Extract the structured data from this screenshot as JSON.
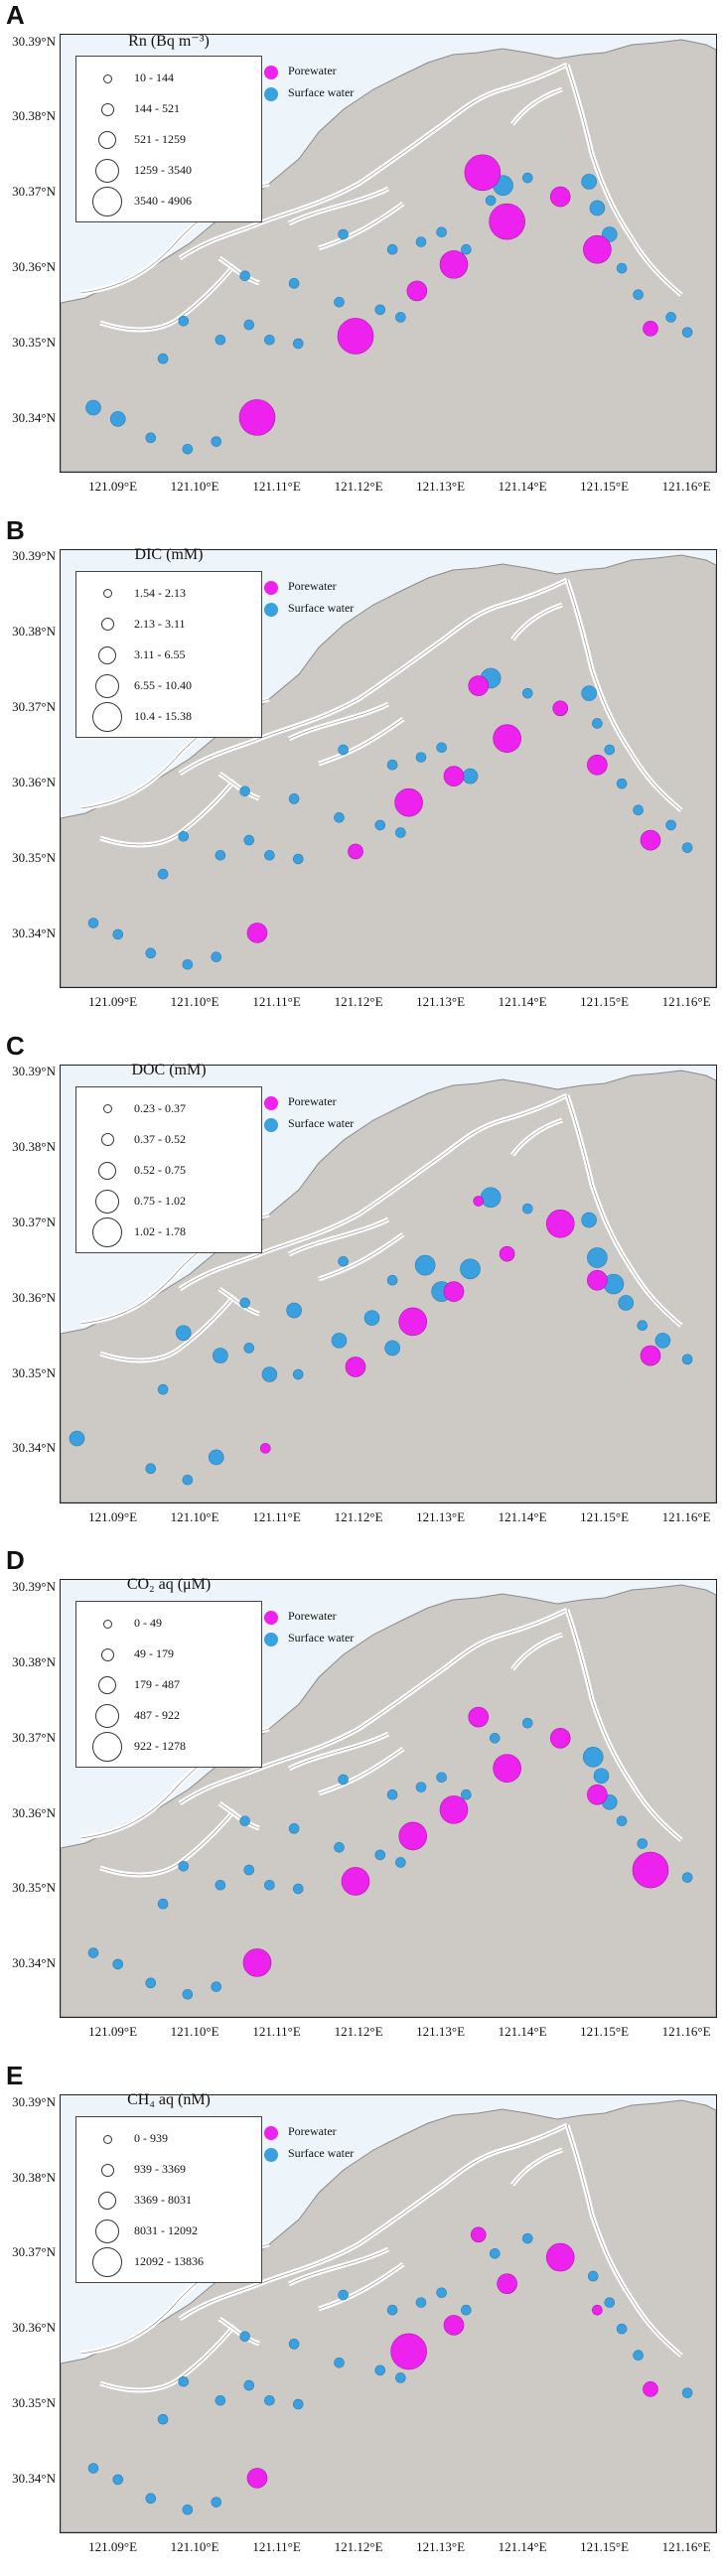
{
  "colors": {
    "porewater": "#ee22ee",
    "surface_water": "#3aa0e0",
    "land": "#cdcac6",
    "water": "#eef5fa",
    "coast": "#8a8a8a"
  },
  "axes": {
    "y_ticks": [
      "30.39°N",
      "30.38°N",
      "30.37°N",
      "30.36°N",
      "30.35°N",
      "30.34°N"
    ],
    "x_ticks": [
      "121.09°E",
      "121.10°E",
      "121.11°E",
      "121.12°E",
      "121.13°E",
      "121.14°E",
      "121.15°E",
      "121.16°E"
    ]
  },
  "type_legend": {
    "porewater": "Porewater",
    "surface_water": "Surface water"
  },
  "panels": [
    {
      "letter": "A",
      "title": "Rn (Bq m⁻³)",
      "size_classes": [
        "10 - 144",
        "144 - 521",
        "521 - 1259",
        "1259 - 3540",
        "3540 - 4906"
      ],
      "porewater": [
        {
          "lon": 121.1075,
          "lat": 30.3402,
          "cls": 5
        },
        {
          "lon": 121.1195,
          "lat": 30.351,
          "cls": 5
        },
        {
          "lon": 121.127,
          "lat": 30.357,
          "cls": 3
        },
        {
          "lon": 121.1315,
          "lat": 30.3605,
          "cls": 4
        },
        {
          "lon": 121.135,
          "lat": 30.3727,
          "cls": 5
        },
        {
          "lon": 121.138,
          "lat": 30.3662,
          "cls": 5
        },
        {
          "lon": 121.1445,
          "lat": 30.3695,
          "cls": 3
        },
        {
          "lon": 121.149,
          "lat": 30.3625,
          "cls": 4
        },
        {
          "lon": 121.1555,
          "lat": 30.352,
          "cls": 2
        }
      ],
      "surface_water": [
        {
          "lon": 121.0875,
          "lat": 30.3415,
          "cls": 2
        },
        {
          "lon": 121.0905,
          "lat": 30.34,
          "cls": 2
        },
        {
          "lon": 121.0945,
          "lat": 30.3375,
          "cls": 1
        },
        {
          "lon": 121.099,
          "lat": 30.336,
          "cls": 1
        },
        {
          "lon": 121.1025,
          "lat": 30.337,
          "cls": 1
        },
        {
          "lon": 121.096,
          "lat": 30.348,
          "cls": 1
        },
        {
          "lon": 121.0985,
          "lat": 30.353,
          "cls": 1
        },
        {
          "lon": 121.103,
          "lat": 30.3505,
          "cls": 1
        },
        {
          "lon": 121.1065,
          "lat": 30.3525,
          "cls": 1
        },
        {
          "lon": 121.109,
          "lat": 30.3505,
          "cls": 1
        },
        {
          "lon": 121.1125,
          "lat": 30.35,
          "cls": 1
        },
        {
          "lon": 121.106,
          "lat": 30.359,
          "cls": 1
        },
        {
          "lon": 121.112,
          "lat": 30.358,
          "cls": 1
        },
        {
          "lon": 121.1175,
          "lat": 30.3555,
          "cls": 1
        },
        {
          "lon": 121.1225,
          "lat": 30.3545,
          "cls": 1
        },
        {
          "lon": 121.125,
          "lat": 30.3535,
          "cls": 1
        },
        {
          "lon": 121.118,
          "lat": 30.3645,
          "cls": 1
        },
        {
          "lon": 121.124,
          "lat": 30.3625,
          "cls": 1
        },
        {
          "lon": 121.1275,
          "lat": 30.3635,
          "cls": 1
        },
        {
          "lon": 121.13,
          "lat": 30.3648,
          "cls": 1
        },
        {
          "lon": 121.133,
          "lat": 30.3625,
          "cls": 1
        },
        {
          "lon": 121.136,
          "lat": 30.369,
          "cls": 1
        },
        {
          "lon": 121.1375,
          "lat": 30.371,
          "cls": 3
        },
        {
          "lon": 121.1405,
          "lat": 30.372,
          "cls": 1
        },
        {
          "lon": 121.148,
          "lat": 30.3715,
          "cls": 2
        },
        {
          "lon": 121.149,
          "lat": 30.368,
          "cls": 2
        },
        {
          "lon": 121.1505,
          "lat": 30.3645,
          "cls": 2
        },
        {
          "lon": 121.152,
          "lat": 30.36,
          "cls": 1
        },
        {
          "lon": 121.154,
          "lat": 30.3565,
          "cls": 1
        },
        {
          "lon": 121.158,
          "lat": 30.3535,
          "cls": 1
        },
        {
          "lon": 121.16,
          "lat": 30.3515,
          "cls": 1
        }
      ]
    },
    {
      "letter": "B",
      "title": "DIC (mM)",
      "size_classes": [
        "1.54 - 2.13",
        "2.13 - 3.11",
        "3.11 - 6.55",
        "6.55 - 10.40",
        "10.4 - 15.38"
      ],
      "porewater": [
        {
          "lon": 121.1075,
          "lat": 30.3402,
          "cls": 3
        },
        {
          "lon": 121.1195,
          "lat": 30.351,
          "cls": 2
        },
        {
          "lon": 121.126,
          "lat": 30.3575,
          "cls": 4
        },
        {
          "lon": 121.1315,
          "lat": 30.361,
          "cls": 3
        },
        {
          "lon": 121.1345,
          "lat": 30.373,
          "cls": 3
        },
        {
          "lon": 121.138,
          "lat": 30.366,
          "cls": 4
        },
        {
          "lon": 121.1445,
          "lat": 30.37,
          "cls": 2
        },
        {
          "lon": 121.149,
          "lat": 30.3625,
          "cls": 3
        },
        {
          "lon": 121.1555,
          "lat": 30.3525,
          "cls": 3
        }
      ],
      "surface_water": [
        {
          "lon": 121.0875,
          "lat": 30.3415,
          "cls": 1
        },
        {
          "lon": 121.0905,
          "lat": 30.34,
          "cls": 1
        },
        {
          "lon": 121.0945,
          "lat": 30.3375,
          "cls": 1
        },
        {
          "lon": 121.099,
          "lat": 30.336,
          "cls": 1
        },
        {
          "lon": 121.1025,
          "lat": 30.337,
          "cls": 1
        },
        {
          "lon": 121.096,
          "lat": 30.348,
          "cls": 1
        },
        {
          "lon": 121.0985,
          "lat": 30.353,
          "cls": 1
        },
        {
          "lon": 121.103,
          "lat": 30.3505,
          "cls": 1
        },
        {
          "lon": 121.1065,
          "lat": 30.3525,
          "cls": 1
        },
        {
          "lon": 121.109,
          "lat": 30.3505,
          "cls": 1
        },
        {
          "lon": 121.1125,
          "lat": 30.35,
          "cls": 1
        },
        {
          "lon": 121.106,
          "lat": 30.359,
          "cls": 1
        },
        {
          "lon": 121.112,
          "lat": 30.358,
          "cls": 1
        },
        {
          "lon": 121.1175,
          "lat": 30.3555,
          "cls": 1
        },
        {
          "lon": 121.1225,
          "lat": 30.3545,
          "cls": 1
        },
        {
          "lon": 121.125,
          "lat": 30.3535,
          "cls": 1
        },
        {
          "lon": 121.118,
          "lat": 30.3645,
          "cls": 1
        },
        {
          "lon": 121.124,
          "lat": 30.3625,
          "cls": 1
        },
        {
          "lon": 121.1275,
          "lat": 30.3635,
          "cls": 1
        },
        {
          "lon": 121.13,
          "lat": 30.3648,
          "cls": 1
        },
        {
          "lon": 121.1335,
          "lat": 30.361,
          "cls": 2
        },
        {
          "lon": 121.136,
          "lat": 30.374,
          "cls": 3
        },
        {
          "lon": 121.1405,
          "lat": 30.372,
          "cls": 1
        },
        {
          "lon": 121.148,
          "lat": 30.372,
          "cls": 2
        },
        {
          "lon": 121.149,
          "lat": 30.368,
          "cls": 1
        },
        {
          "lon": 121.1505,
          "lat": 30.3645,
          "cls": 1
        },
        {
          "lon": 121.152,
          "lat": 30.36,
          "cls": 1
        },
        {
          "lon": 121.154,
          "lat": 30.3565,
          "cls": 1
        },
        {
          "lon": 121.158,
          "lat": 30.3545,
          "cls": 1
        },
        {
          "lon": 121.16,
          "lat": 30.3515,
          "cls": 1
        }
      ]
    },
    {
      "letter": "C",
      "title": "DOC (mM)",
      "size_classes": [
        "0.23 - 0.37",
        "0.37 - 0.52",
        "0.52 - 0.75",
        "0.75 - 1.02",
        "1.02 - 1.78"
      ],
      "porewater": [
        {
          "lon": 121.1085,
          "lat": 30.3402,
          "cls": 1
        },
        {
          "lon": 121.1195,
          "lat": 30.351,
          "cls": 3
        },
        {
          "lon": 121.1265,
          "lat": 30.357,
          "cls": 4
        },
        {
          "lon": 121.1315,
          "lat": 30.361,
          "cls": 3
        },
        {
          "lon": 121.1345,
          "lat": 30.373,
          "cls": 1
        },
        {
          "lon": 121.138,
          "lat": 30.366,
          "cls": 2
        },
        {
          "lon": 121.1445,
          "lat": 30.37,
          "cls": 4
        },
        {
          "lon": 121.149,
          "lat": 30.3625,
          "cls": 3
        },
        {
          "lon": 121.1555,
          "lat": 30.3525,
          "cls": 3
        }
      ],
      "surface_water": [
        {
          "lon": 121.0855,
          "lat": 30.3415,
          "cls": 2
        },
        {
          "lon": 121.0945,
          "lat": 30.3375,
          "cls": 1
        },
        {
          "lon": 121.099,
          "lat": 30.336,
          "cls": 1
        },
        {
          "lon": 121.1025,
          "lat": 30.339,
          "cls": 2
        },
        {
          "lon": 121.096,
          "lat": 30.348,
          "cls": 1
        },
        {
          "lon": 121.0985,
          "lat": 30.3555,
          "cls": 2
        },
        {
          "lon": 121.103,
          "lat": 30.3525,
          "cls": 2
        },
        {
          "lon": 121.1065,
          "lat": 30.3535,
          "cls": 1
        },
        {
          "lon": 121.109,
          "lat": 30.35,
          "cls": 2
        },
        {
          "lon": 121.1125,
          "lat": 30.35,
          "cls": 1
        },
        {
          "lon": 121.106,
          "lat": 30.3595,
          "cls": 1
        },
        {
          "lon": 121.112,
          "lat": 30.3585,
          "cls": 2
        },
        {
          "lon": 121.1175,
          "lat": 30.3545,
          "cls": 2
        },
        {
          "lon": 121.1215,
          "lat": 30.3575,
          "cls": 2
        },
        {
          "lon": 121.124,
          "lat": 30.3535,
          "cls": 2
        },
        {
          "lon": 121.118,
          "lat": 30.365,
          "cls": 1
        },
        {
          "lon": 121.124,
          "lat": 30.3625,
          "cls": 1
        },
        {
          "lon": 121.128,
          "lat": 30.3645,
          "cls": 3
        },
        {
          "lon": 121.13,
          "lat": 30.361,
          "cls": 3
        },
        {
          "lon": 121.1335,
          "lat": 30.364,
          "cls": 3
        },
        {
          "lon": 121.136,
          "lat": 30.3735,
          "cls": 3
        },
        {
          "lon": 121.1405,
          "lat": 30.372,
          "cls": 1
        },
        {
          "lon": 121.148,
          "lat": 30.3705,
          "cls": 2
        },
        {
          "lon": 121.149,
          "lat": 30.3655,
          "cls": 3
        },
        {
          "lon": 121.151,
          "lat": 30.362,
          "cls": 3
        },
        {
          "lon": 121.1525,
          "lat": 30.3595,
          "cls": 2
        },
        {
          "lon": 121.1545,
          "lat": 30.3565,
          "cls": 1
        },
        {
          "lon": 121.157,
          "lat": 30.3545,
          "cls": 2
        },
        {
          "lon": 121.16,
          "lat": 30.352,
          "cls": 1
        }
      ]
    },
    {
      "letter": "D",
      "title": "CO₂ aq (μM)",
      "size_classes": [
        "0 - 49",
        "49 - 179",
        "179 - 487",
        "487 - 922",
        "922 - 1278"
      ],
      "porewater": [
        {
          "lon": 121.1075,
          "lat": 30.3402,
          "cls": 4
        },
        {
          "lon": 121.1195,
          "lat": 30.351,
          "cls": 4
        },
        {
          "lon": 121.1265,
          "lat": 30.357,
          "cls": 4
        },
        {
          "lon": 121.1315,
          "lat": 30.3605,
          "cls": 4
        },
        {
          "lon": 121.1345,
          "lat": 30.3728,
          "cls": 3
        },
        {
          "lon": 121.138,
          "lat": 30.366,
          "cls": 4
        },
        {
          "lon": 121.1445,
          "lat": 30.37,
          "cls": 3
        },
        {
          "lon": 121.149,
          "lat": 30.3625,
          "cls": 3
        },
        {
          "lon": 121.1555,
          "lat": 30.3525,
          "cls": 5
        }
      ],
      "surface_water": [
        {
          "lon": 121.0875,
          "lat": 30.3415,
          "cls": 1
        },
        {
          "lon": 121.0905,
          "lat": 30.34,
          "cls": 1
        },
        {
          "lon": 121.0945,
          "lat": 30.3375,
          "cls": 1
        },
        {
          "lon": 121.099,
          "lat": 30.336,
          "cls": 1
        },
        {
          "lon": 121.1025,
          "lat": 30.337,
          "cls": 1
        },
        {
          "lon": 121.096,
          "lat": 30.348,
          "cls": 1
        },
        {
          "lon": 121.0985,
          "lat": 30.353,
          "cls": 1
        },
        {
          "lon": 121.103,
          "lat": 30.3505,
          "cls": 1
        },
        {
          "lon": 121.1065,
          "lat": 30.3525,
          "cls": 1
        },
        {
          "lon": 121.109,
          "lat": 30.3505,
          "cls": 1
        },
        {
          "lon": 121.1125,
          "lat": 30.35,
          "cls": 1
        },
        {
          "lon": 121.106,
          "lat": 30.359,
          "cls": 1
        },
        {
          "lon": 121.112,
          "lat": 30.358,
          "cls": 1
        },
        {
          "lon": 121.1175,
          "lat": 30.3555,
          "cls": 1
        },
        {
          "lon": 121.1225,
          "lat": 30.3545,
          "cls": 1
        },
        {
          "lon": 121.125,
          "lat": 30.3535,
          "cls": 1
        },
        {
          "lon": 121.118,
          "lat": 30.3645,
          "cls": 1
        },
        {
          "lon": 121.124,
          "lat": 30.3625,
          "cls": 1
        },
        {
          "lon": 121.1275,
          "lat": 30.3635,
          "cls": 1
        },
        {
          "lon": 121.13,
          "lat": 30.3648,
          "cls": 1
        },
        {
          "lon": 121.133,
          "lat": 30.3625,
          "cls": 1
        },
        {
          "lon": 121.1365,
          "lat": 30.37,
          "cls": 1
        },
        {
          "lon": 121.1405,
          "lat": 30.372,
          "cls": 1
        },
        {
          "lon": 121.1485,
          "lat": 30.3675,
          "cls": 3
        },
        {
          "lon": 121.1495,
          "lat": 30.365,
          "cls": 2
        },
        {
          "lon": 121.1505,
          "lat": 30.3615,
          "cls": 2
        },
        {
          "lon": 121.152,
          "lat": 30.359,
          "cls": 1
        },
        {
          "lon": 121.1545,
          "lat": 30.356,
          "cls": 1
        },
        {
          "lon": 121.16,
          "lat": 30.3515,
          "cls": 1
        }
      ]
    },
    {
      "letter": "E",
      "title": "CH₄ aq (nM)",
      "size_classes": [
        "0 - 939",
        "939 - 3369",
        "3369 - 8031",
        "8031 - 12092",
        "12092 - 13836"
      ],
      "porewater": [
        {
          "lon": 121.1075,
          "lat": 30.3402,
          "cls": 3
        },
        {
          "lon": 121.126,
          "lat": 30.357,
          "cls": 5
        },
        {
          "lon": 121.1315,
          "lat": 30.3605,
          "cls": 3
        },
        {
          "lon": 121.1345,
          "lat": 30.3725,
          "cls": 2
        },
        {
          "lon": 121.138,
          "lat": 30.366,
          "cls": 3
        },
        {
          "lon": 121.1445,
          "lat": 30.3695,
          "cls": 4
        },
        {
          "lon": 121.149,
          "lat": 30.3625,
          "cls": 1
        },
        {
          "lon": 121.1555,
          "lat": 30.352,
          "cls": 2
        }
      ],
      "surface_water": [
        {
          "lon": 121.0875,
          "lat": 30.3415,
          "cls": 1
        },
        {
          "lon": 121.0905,
          "lat": 30.34,
          "cls": 1
        },
        {
          "lon": 121.0945,
          "lat": 30.3375,
          "cls": 1
        },
        {
          "lon": 121.099,
          "lat": 30.336,
          "cls": 1
        },
        {
          "lon": 121.1025,
          "lat": 30.337,
          "cls": 1
        },
        {
          "lon": 121.096,
          "lat": 30.348,
          "cls": 1
        },
        {
          "lon": 121.0985,
          "lat": 30.353,
          "cls": 1
        },
        {
          "lon": 121.103,
          "lat": 30.3505,
          "cls": 1
        },
        {
          "lon": 121.1065,
          "lat": 30.3525,
          "cls": 1
        },
        {
          "lon": 121.109,
          "lat": 30.3505,
          "cls": 1
        },
        {
          "lon": 121.1125,
          "lat": 30.35,
          "cls": 1
        },
        {
          "lon": 121.106,
          "lat": 30.359,
          "cls": 1
        },
        {
          "lon": 121.112,
          "lat": 30.358,
          "cls": 1
        },
        {
          "lon": 121.1175,
          "lat": 30.3555,
          "cls": 1
        },
        {
          "lon": 121.1225,
          "lat": 30.3545,
          "cls": 1
        },
        {
          "lon": 121.125,
          "lat": 30.3535,
          "cls": 1
        },
        {
          "lon": 121.118,
          "lat": 30.3645,
          "cls": 1
        },
        {
          "lon": 121.124,
          "lat": 30.3625,
          "cls": 1
        },
        {
          "lon": 121.1275,
          "lat": 30.3635,
          "cls": 1
        },
        {
          "lon": 121.13,
          "lat": 30.3648,
          "cls": 1
        },
        {
          "lon": 121.133,
          "lat": 30.3625,
          "cls": 1
        },
        {
          "lon": 121.1365,
          "lat": 30.37,
          "cls": 1
        },
        {
          "lon": 121.1405,
          "lat": 30.372,
          "cls": 1
        },
        {
          "lon": 121.1485,
          "lat": 30.367,
          "cls": 1
        },
        {
          "lon": 121.1505,
          "lat": 30.3635,
          "cls": 1
        },
        {
          "lon": 121.152,
          "lat": 30.36,
          "cls": 1
        },
        {
          "lon": 121.154,
          "lat": 30.3565,
          "cls": 1
        },
        {
          "lon": 121.16,
          "lat": 30.3515,
          "cls": 1
        }
      ]
    }
  ]
}
